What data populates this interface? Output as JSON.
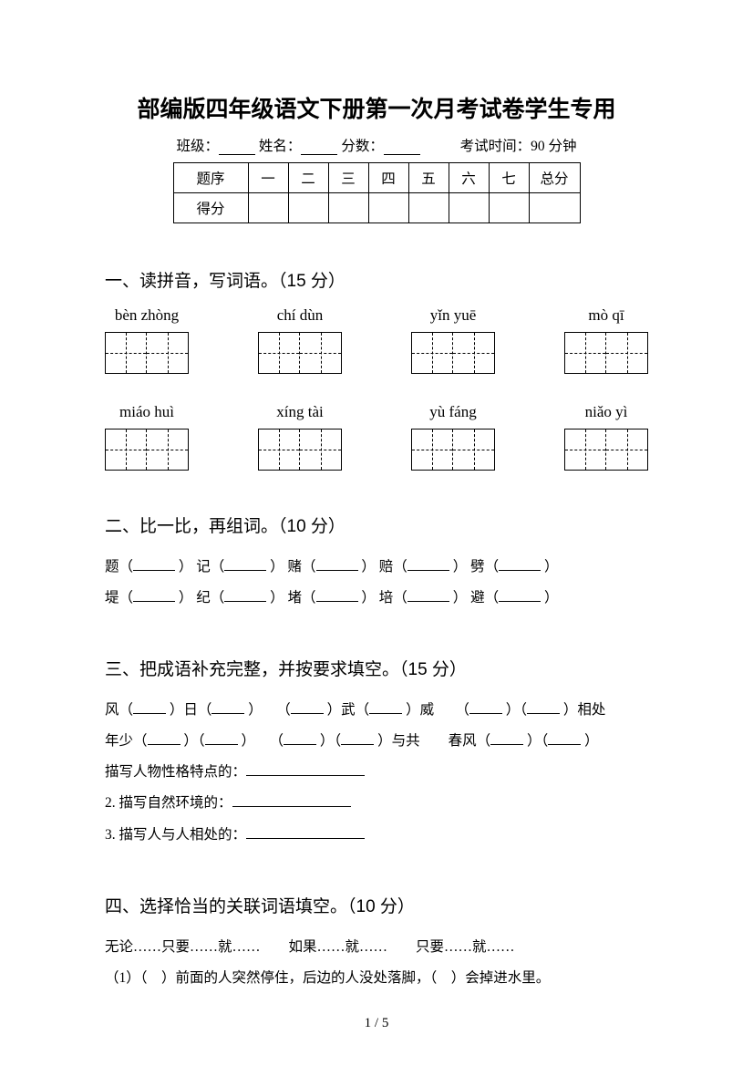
{
  "title": "部编版四年级语文下册第一次月考试卷学生专用",
  "header": {
    "class_label": "班级：",
    "name_label": "姓名：",
    "score_label": "分数：",
    "time_label": "考试时间：90 分钟"
  },
  "score_table": {
    "row1_label": "题序",
    "columns": [
      "一",
      "二",
      "三",
      "四",
      "五",
      "六",
      "七",
      "总分"
    ],
    "row2_label": "得分"
  },
  "section1": {
    "heading": "一、读拼音，写词语。（15 分）",
    "pinyin_row1": [
      "bèn zhòng",
      "chí dùn",
      "yǐn yuē",
      "mò qī"
    ],
    "pinyin_row2": [
      "miáo huì",
      "xíng tài",
      "yù fáng",
      "niǎo yì"
    ]
  },
  "section2": {
    "heading": "二、比一比，再组词。（10 分）",
    "row1": [
      "题（",
      "）  记（",
      "）  赌（",
      "）  赔（",
      "）  劈（",
      "）"
    ],
    "row2": [
      "堤（",
      "）  纪（",
      "）  堵（",
      "）  培（",
      "）  避（",
      "）"
    ]
  },
  "section3": {
    "heading": "三、把成语补充完整，并按要求填空。（15 分）",
    "line1_parts": [
      "风（",
      "）日（",
      "）　　（",
      "）武（",
      "）威　　（",
      "）（",
      "）相处"
    ],
    "line2_parts": [
      "年少（",
      "）（",
      "）　　（",
      "）（",
      "）与共　　春风（",
      "）（",
      "）"
    ],
    "q1": "描写人物性格特点的：",
    "q2": "2. 描写自然环境的：",
    "q3": "3. 描写人与人相处的："
  },
  "section4": {
    "heading": "四、选择恰当的关联词语填空。（10 分）",
    "options": "无论……只要……就……　　如果……就……　　只要……就……",
    "q1": "（1）（　）前面的人突然停住，后边的人没处落脚，（　）会掉进水里。"
  },
  "page_number": "1 / 5"
}
